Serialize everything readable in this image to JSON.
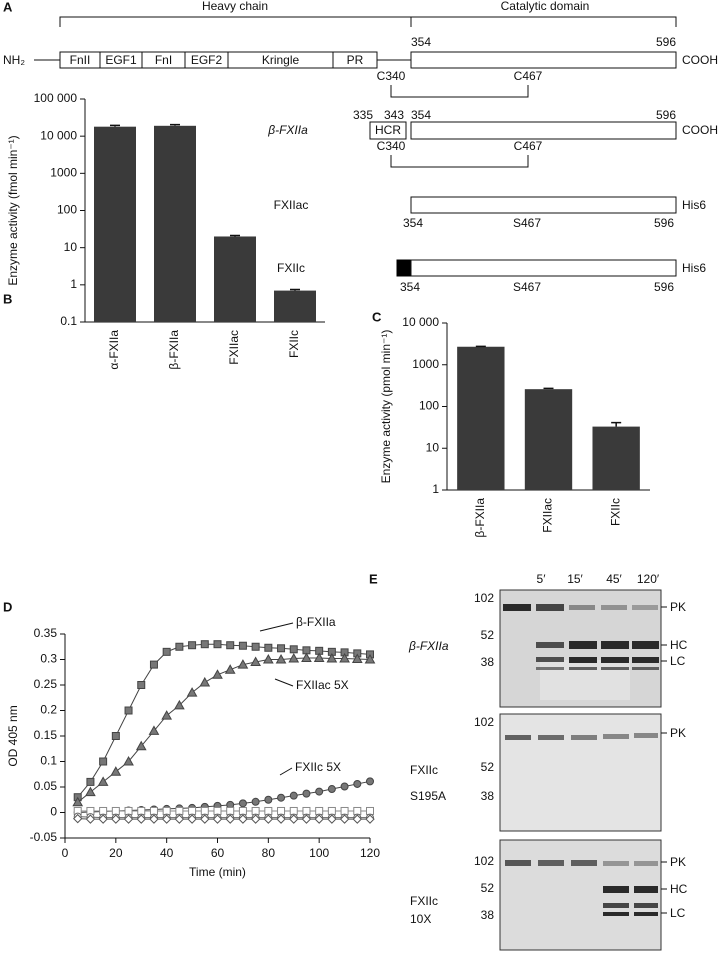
{
  "panel_labels": [
    "A",
    "B",
    "C",
    "D",
    "E"
  ],
  "diagram": {
    "heavy_chain": "Heavy chain",
    "catalytic_domain": "Catalytic domain",
    "rows": [
      {
        "n_terminus": "NH₂",
        "domains": [
          "FnII",
          "EGF1",
          "FnI",
          "EGF2",
          "Kringle",
          "PR"
        ],
        "start": "354",
        "end": "596",
        "c_terminus": "COOH",
        "disulfide": [
          "C340",
          "C467"
        ]
      },
      {
        "name": "β-FXIIa",
        "hcr_start": "335",
        "hcr_end": "343",
        "hcr": "HCR",
        "start": "354",
        "end": "596",
        "c_terminus": "COOH",
        "disulfide": [
          "C340",
          "C467"
        ]
      },
      {
        "name": "FXIIac",
        "start": "354",
        "site": "S467",
        "end": "596",
        "c_terminus": "His6"
      },
      {
        "name": "FXIIc",
        "start": "354",
        "site": "S467",
        "end": "596",
        "c_terminus": "His6"
      }
    ]
  },
  "chart_data": [
    {
      "type": "bar",
      "y_label": "Enzyme activity (fmol min⁻¹)",
      "categories": [
        "α-FXIIa",
        "β-FXIIa",
        "FXIIac",
        "FXIIc"
      ],
      "values": [
        18000,
        19000,
        20,
        0.7
      ],
      "errors": [
        1500,
        1500,
        1.2,
        0.05
      ],
      "color": "#3a3a3a",
      "log_scale": true,
      "ylim": [
        0.1,
        100000
      ],
      "yticks": [
        0.1,
        1,
        10,
        100,
        1000,
        {
          "value": 10000,
          "label": "10 000"
        },
        {
          "value": 100000,
          "label": "100 000"
        }
      ]
    },
    {
      "type": "bar",
      "y_label": "Enzyme activity (pmol min⁻¹)",
      "categories": [
        "β-FXIIa",
        "FXIIac",
        "FXIIc"
      ],
      "values": [
        2700,
        260,
        33
      ],
      "errors": [
        60,
        12,
        8
      ],
      "color": "#3a3a3a",
      "log_scale": true,
      "ylim": [
        1,
        10000
      ],
      "yticks": [
        1,
        10,
        100,
        1000,
        {
          "value": 10000,
          "label": "10 000"
        }
      ]
    },
    {
      "type": "line",
      "x_label": "Time (min)",
      "y_label": "OD 405 nm",
      "x": [
        5,
        10,
        15,
        20,
        25,
        30,
        35,
        40,
        45,
        50,
        55,
        60,
        65,
        70,
        75,
        80,
        85,
        90,
        95,
        100,
        105,
        110,
        115,
        120
      ],
      "xlim": [
        0,
        120
      ],
      "xticks": [
        0,
        20,
        40,
        60,
        80,
        100,
        120
      ],
      "ylim": [
        -0.05,
        0.35
      ],
      "yticks": [
        -0.05,
        0,
        0.05,
        0.1,
        0.15,
        0.2,
        0.25,
        0.3,
        0.35
      ],
      "series": [
        {
          "name": "β-FXIIa",
          "marker": "square",
          "color": "#444444",
          "fill": "#777777",
          "values": [
            0.03,
            0.06,
            0.1,
            0.15,
            0.2,
            0.25,
            0.29,
            0.315,
            0.325,
            0.328,
            0.33,
            0.33,
            0.328,
            0.327,
            0.325,
            0.323,
            0.322,
            0.32,
            0.318,
            0.317,
            0.315,
            0.314,
            0.312,
            0.31
          ]
        },
        {
          "name": "FXIIac 5X",
          "marker": "triangle",
          "color": "#444444",
          "fill": "#777777",
          "values": [
            0.02,
            0.04,
            0.06,
            0.08,
            0.1,
            0.13,
            0.16,
            0.19,
            0.21,
            0.235,
            0.255,
            0.27,
            0.28,
            0.29,
            0.295,
            0.3,
            0.3,
            0.302,
            0.303,
            0.303,
            0.302,
            0.302,
            0.301,
            0.3
          ]
        },
        {
          "name": "FXIIc 5X",
          "marker": "circle",
          "color": "#444444",
          "fill": "#777777",
          "values": [
            0,
            0.001,
            0.002,
            0.003,
            0.004,
            0.005,
            0.006,
            0.007,
            0.008,
            0.009,
            0.011,
            0.013,
            0.015,
            0.018,
            0.021,
            0.025,
            0.029,
            0.033,
            0.037,
            0.041,
            0.046,
            0.051,
            0.056,
            0.061
          ]
        },
        {
          "marker": "square",
          "color": "#888888",
          "fill": "#ffffff",
          "values": [
            0.003,
            0.003,
            0.003,
            0.003,
            0.003,
            0.003,
            0.003,
            0.003,
            0.003,
            0.003,
            0.003,
            0.003,
            0.003,
            0.003,
            0.003,
            0.003,
            0.003,
            0.003,
            0.003,
            0.003,
            0.003,
            0.003,
            0.003,
            0.003
          ]
        },
        {
          "marker": "circle",
          "color": "#666666",
          "fill": "#ffffff",
          "values": [
            -0.008,
            -0.009,
            -0.01,
            -0.01,
            -0.01,
            -0.01,
            -0.01,
            -0.01,
            -0.01,
            -0.01,
            -0.01,
            -0.01,
            -0.01,
            -0.01,
            -0.01,
            -0.01,
            -0.01,
            -0.01,
            -0.01,
            -0.01,
            -0.01,
            -0.01,
            -0.01,
            -0.01
          ]
        },
        {
          "marker": "diamond",
          "color": "#555555",
          "fill": "#ffffff",
          "values": [
            -0.012,
            -0.013,
            -0.013,
            -0.013,
            -0.013,
            -0.013,
            -0.013,
            -0.013,
            -0.013,
            -0.013,
            -0.013,
            -0.013,
            -0.013,
            -0.013,
            -0.013,
            -0.013,
            -0.013,
            -0.013,
            -0.013,
            -0.013,
            -0.013,
            -0.013,
            -0.013,
            -0.013
          ]
        }
      ]
    }
  ],
  "gel": {
    "times": [
      "5′",
      "15′",
      "45′",
      "120′"
    ],
    "panels": [
      {
        "sample": [
          "β-FXIIa"
        ],
        "markers": [
          "102",
          "52",
          "38"
        ],
        "bands": [
          "PK",
          "HC",
          "LC"
        ]
      },
      {
        "sample": [
          "FXIIc",
          "S195A"
        ],
        "markers": [
          "102",
          "52",
          "38"
        ],
        "bands": [
          "PK"
        ]
      },
      {
        "sample": [
          "FXIIc",
          "10X"
        ],
        "markers": [
          "102",
          "52",
          "38"
        ],
        "bands": [
          "PK",
          "HC",
          "LC"
        ]
      }
    ]
  }
}
